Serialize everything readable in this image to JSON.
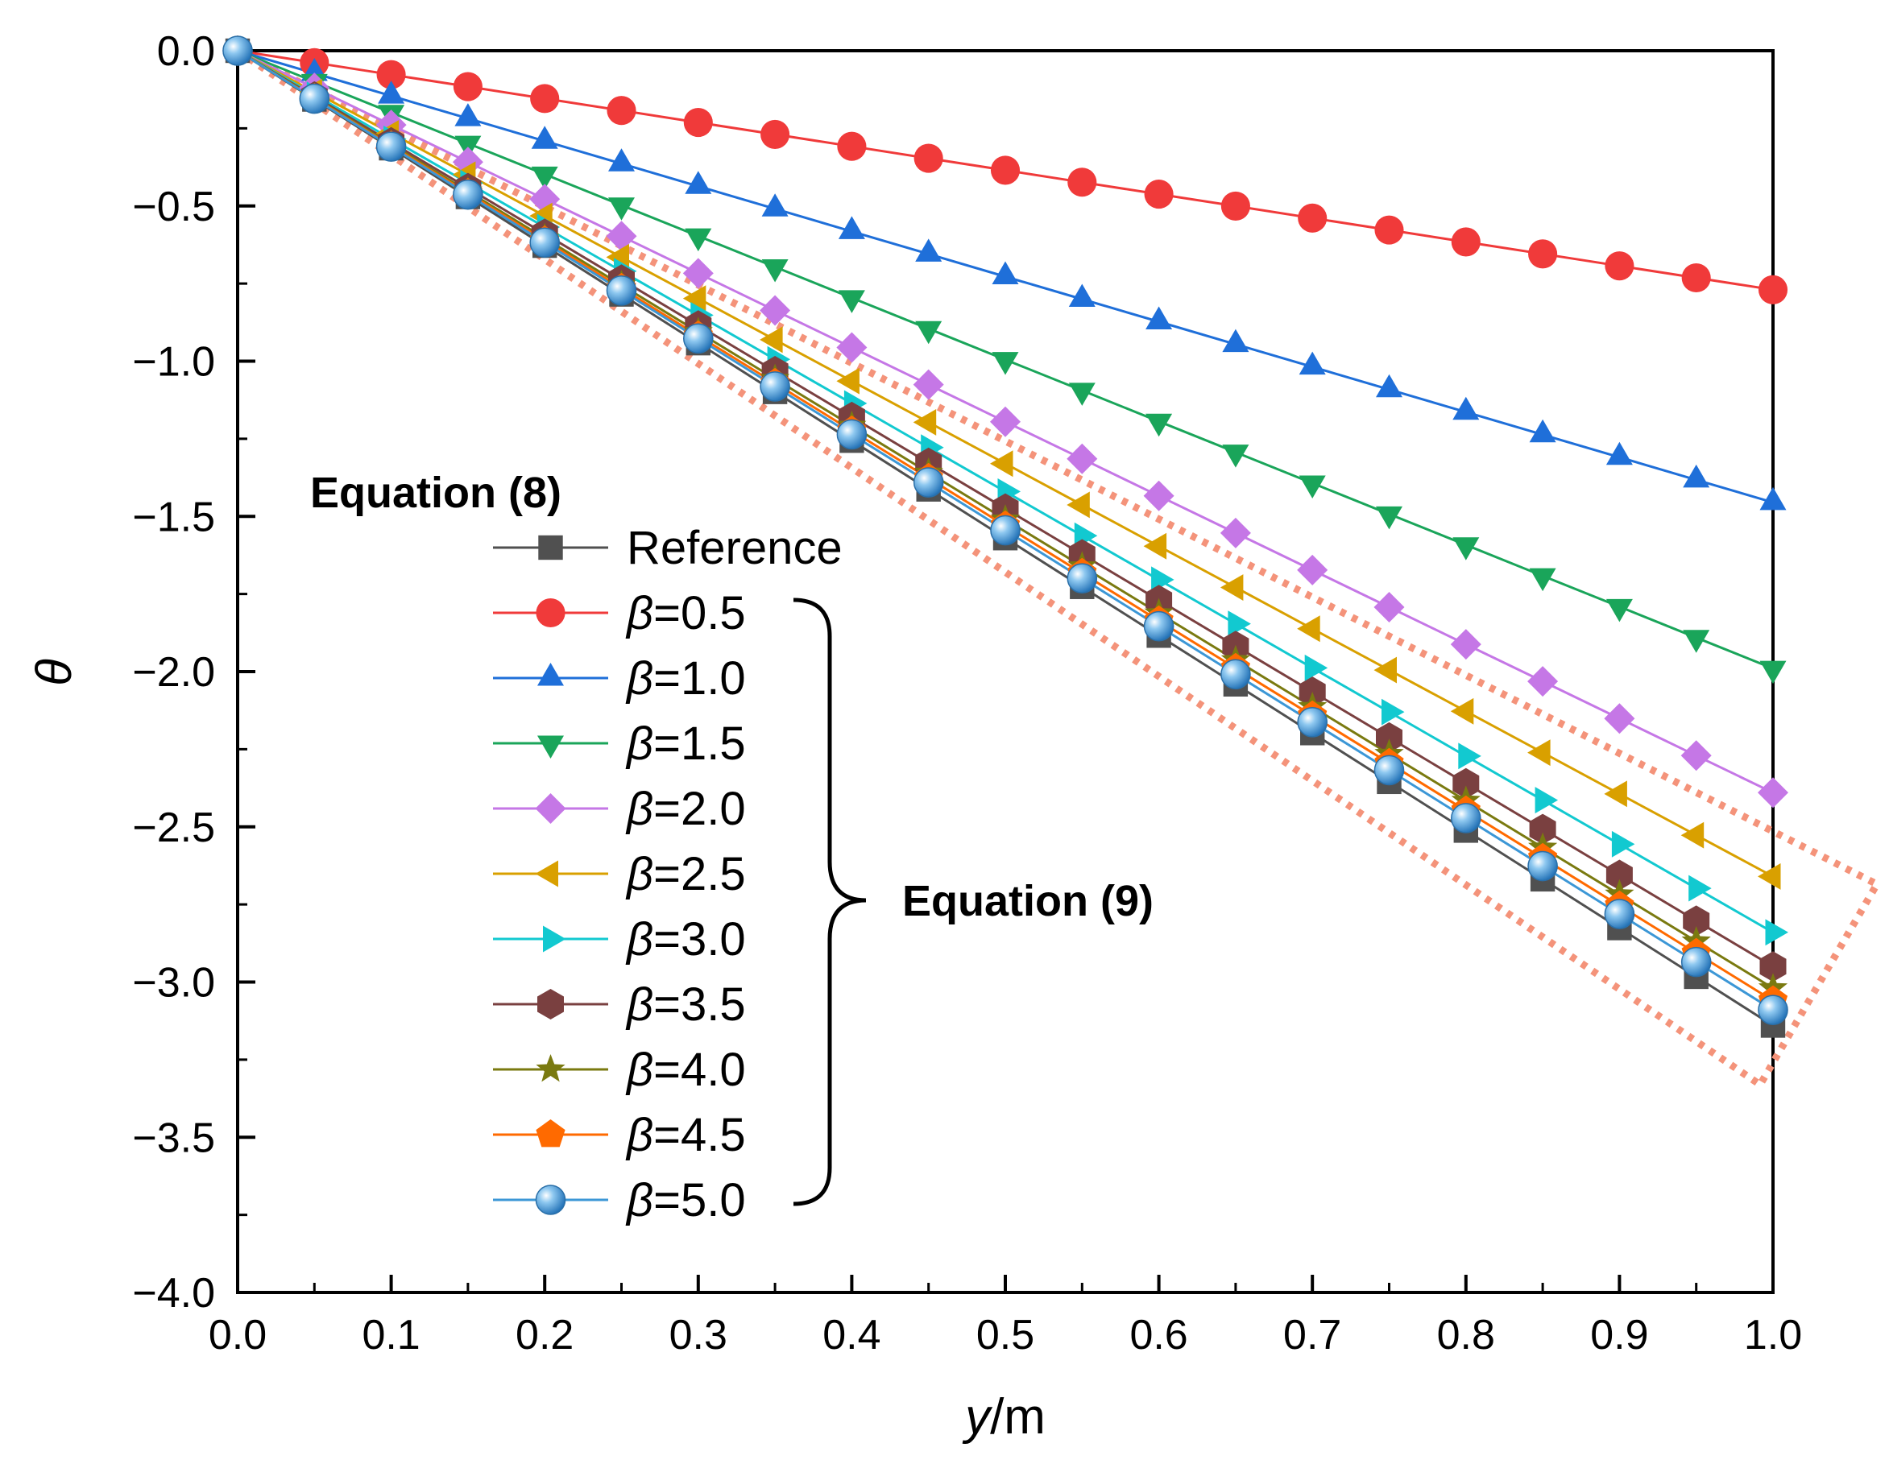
{
  "chart_data": {
    "type": "line",
    "xlabel_var": "y",
    "xlabel_unit": "/m",
    "ylabel": "θ",
    "xlim": [
      0.0,
      1.0
    ],
    "ylim": [
      -4.0,
      0.0
    ],
    "x_ticks": [
      "0.0",
      "0.1",
      "0.2",
      "0.3",
      "0.4",
      "0.5",
      "0.6",
      "0.7",
      "0.8",
      "0.9",
      "1.0"
    ],
    "y_ticks": [
      "0.0",
      "−0.5",
      "−1.0",
      "−1.5",
      "−2.0",
      "−2.5",
      "−3.0",
      "−3.5",
      "−4.0"
    ],
    "x": [
      0.0,
      0.05,
      0.1,
      0.15,
      0.2,
      0.25,
      0.3,
      0.35,
      0.4,
      0.45,
      0.5,
      0.55,
      0.6,
      0.65,
      0.7,
      0.75,
      0.8,
      0.85,
      0.9,
      0.95,
      1.0
    ],
    "legend_header_main": "Equation (8)",
    "legend_header_bracket": "Equation (9)",
    "series": [
      {
        "name": "Reference",
        "beta": null,
        "slope": -3.14,
        "color": "#505050",
        "marker": "square"
      },
      {
        "name": "β=0.5",
        "beta": "0.5",
        "slope": -0.77,
        "color": "#f03a3a",
        "marker": "circle"
      },
      {
        "name": "β=1.0",
        "beta": "1.0",
        "slope": -1.455,
        "color": "#1f6fd9",
        "marker": "triangle-up"
      },
      {
        "name": "β=1.5",
        "beta": "1.5",
        "slope": -1.99,
        "color": "#1aa55a",
        "marker": "triangle-down"
      },
      {
        "name": "β=2.0",
        "beta": "2.0",
        "slope": -2.39,
        "color": "#c577e6",
        "marker": "diamond"
      },
      {
        "name": "β=2.5",
        "beta": "2.5",
        "slope": -2.66,
        "color": "#d9a000",
        "marker": "triangle-left"
      },
      {
        "name": "β=3.0",
        "beta": "3.0",
        "slope": -2.84,
        "color": "#12c9d0",
        "marker": "triangle-right"
      },
      {
        "name": "β=3.5",
        "beta": "3.5",
        "slope": -2.95,
        "color": "#7a4040",
        "marker": "hexagon"
      },
      {
        "name": "β=4.0",
        "beta": "4.0",
        "slope": -3.02,
        "color": "#7a7a10",
        "marker": "star"
      },
      {
        "name": "β=4.5",
        "beta": "4.5",
        "slope": -3.06,
        "color": "#ff6a00",
        "marker": "pentagon"
      },
      {
        "name": "β=5.0",
        "beta": "5.0",
        "slope": -3.09,
        "color": "#3c97d6",
        "marker": "sphere"
      }
    ],
    "annotation_box_color": "#f4937a"
  }
}
